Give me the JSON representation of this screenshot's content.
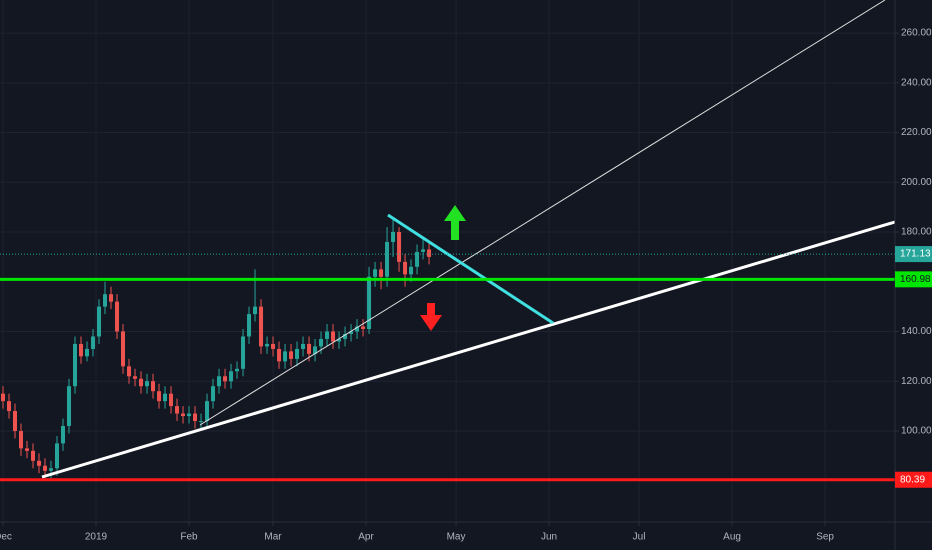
{
  "chart_data": {
    "type": "candlestick",
    "x": [
      0,
      2,
      4,
      6,
      8,
      10,
      12,
      14,
      16,
      18,
      20,
      22,
      24,
      26,
      28,
      30,
      32,
      34,
      36,
      38,
      40,
      42,
      44,
      46,
      48,
      50,
      52,
      54,
      56,
      58,
      60,
      62,
      64,
      66,
      68,
      70,
      72,
      74,
      76,
      78,
      80,
      82,
      84,
      86,
      88,
      90,
      92,
      94,
      96,
      98,
      100,
      102,
      104,
      106,
      108,
      110,
      112,
      114,
      116,
      118,
      120,
      122,
      124,
      126,
      128,
      130,
      132,
      134,
      136,
      138,
      140,
      142
    ],
    "open": [
      115,
      112,
      108,
      100,
      93,
      92,
      88,
      86,
      84,
      85,
      95,
      102,
      118,
      135,
      130,
      133,
      138,
      150,
      155,
      152,
      140,
      126,
      122,
      121,
      118,
      120,
      116,
      112,
      115,
      110,
      107,
      106,
      107,
      104,
      104,
      112,
      118,
      122,
      120,
      124,
      125,
      138,
      147,
      150,
      134,
      135,
      133,
      128,
      132,
      129,
      133,
      135,
      131,
      134,
      137,
      140,
      136,
      137,
      139,
      140,
      142,
      141,
      162,
      165,
      162,
      176,
      180,
      168,
      163,
      166,
      172,
      173
    ],
    "high": [
      118,
      115,
      111,
      103,
      96,
      95,
      91,
      89,
      88,
      98,
      105,
      121,
      138,
      138,
      136,
      141,
      153,
      160,
      158,
      155,
      143,
      129,
      125,
      124,
      123,
      123,
      119,
      118,
      118,
      113,
      110,
      110,
      110,
      107,
      115,
      121,
      125,
      125,
      127,
      128,
      141,
      150,
      165,
      153,
      138,
      138,
      136,
      135,
      135,
      136,
      138,
      138,
      137,
      140,
      143,
      143,
      140,
      142,
      143,
      145,
      145,
      166,
      168,
      168,
      182,
      186,
      182,
      171,
      169,
      175,
      177,
      176
    ],
    "low": [
      109,
      105,
      97,
      90,
      89,
      85,
      83,
      81,
      80.4,
      82,
      92,
      99,
      115,
      127,
      128,
      130,
      135,
      147,
      149,
      137,
      123,
      119,
      118,
      115,
      115,
      113,
      109,
      109,
      107,
      104,
      103,
      103,
      101,
      101,
      101,
      109,
      115,
      117,
      117,
      121,
      122,
      135,
      144,
      131,
      131,
      130,
      125,
      125,
      126,
      126,
      130,
      128,
      128,
      131,
      134,
      133,
      133,
      134,
      136,
      137,
      138,
      139,
      158,
      157,
      158,
      170,
      164,
      158,
      160,
      163,
      169,
      167
    ],
    "close": [
      112,
      108,
      100,
      93,
      92,
      88,
      86,
      84,
      85,
      95,
      102,
      118,
      135,
      130,
      133,
      138,
      150,
      155,
      152,
      140,
      126,
      122,
      121,
      118,
      120,
      116,
      112,
      115,
      110,
      107,
      106,
      107,
      104,
      104,
      112,
      118,
      122,
      120,
      124,
      125,
      138,
      147,
      150,
      134,
      135,
      133,
      128,
      132,
      129,
      133,
      135,
      131,
      134,
      137,
      140,
      136,
      137,
      139,
      140,
      142,
      141,
      162,
      165,
      162,
      176,
      180,
      168,
      163,
      166,
      172,
      173,
      170
    ],
    "up_color": "#26a69a",
    "down_color": "#ef5350",
    "xlim": [
      -1,
      297.3
    ],
    "xticks": [
      {
        "value": 0,
        "label": "Dec"
      },
      {
        "value": 31,
        "label": "2019"
      },
      {
        "value": 62,
        "label": "Feb"
      },
      {
        "value": 90,
        "label": "Mar"
      },
      {
        "value": 121,
        "label": "Apr"
      },
      {
        "value": 151,
        "label": "May"
      },
      {
        "value": 182,
        "label": "Jun"
      },
      {
        "value": 212,
        "label": "Jul"
      },
      {
        "value": 243,
        "label": "Aug"
      },
      {
        "value": 274,
        "label": "Sep"
      }
    ],
    "ylim": [
      63.4,
      273.3
    ],
    "yticks": [
      {
        "value": 100,
        "label": "100.00"
      },
      {
        "value": 120,
        "label": "120.00"
      },
      {
        "value": 140,
        "label": "140.00"
      },
      {
        "value": 180,
        "label": "180.00"
      },
      {
        "value": 200,
        "label": "200.00"
      },
      {
        "value": 220,
        "label": "220.00"
      },
      {
        "value": 240,
        "label": "240.00"
      },
      {
        "value": 260,
        "label": "260.00"
      }
    ],
    "grid": true,
    "price_lines": [
      {
        "value": 171.13,
        "color": "#26a69a",
        "style": "dotted"
      },
      {
        "value": 160.98,
        "color": "#00e600",
        "style": "solid"
      },
      {
        "value": 80.39,
        "color": "#ff1a1a",
        "style": "solid"
      }
    ]
  }
}
